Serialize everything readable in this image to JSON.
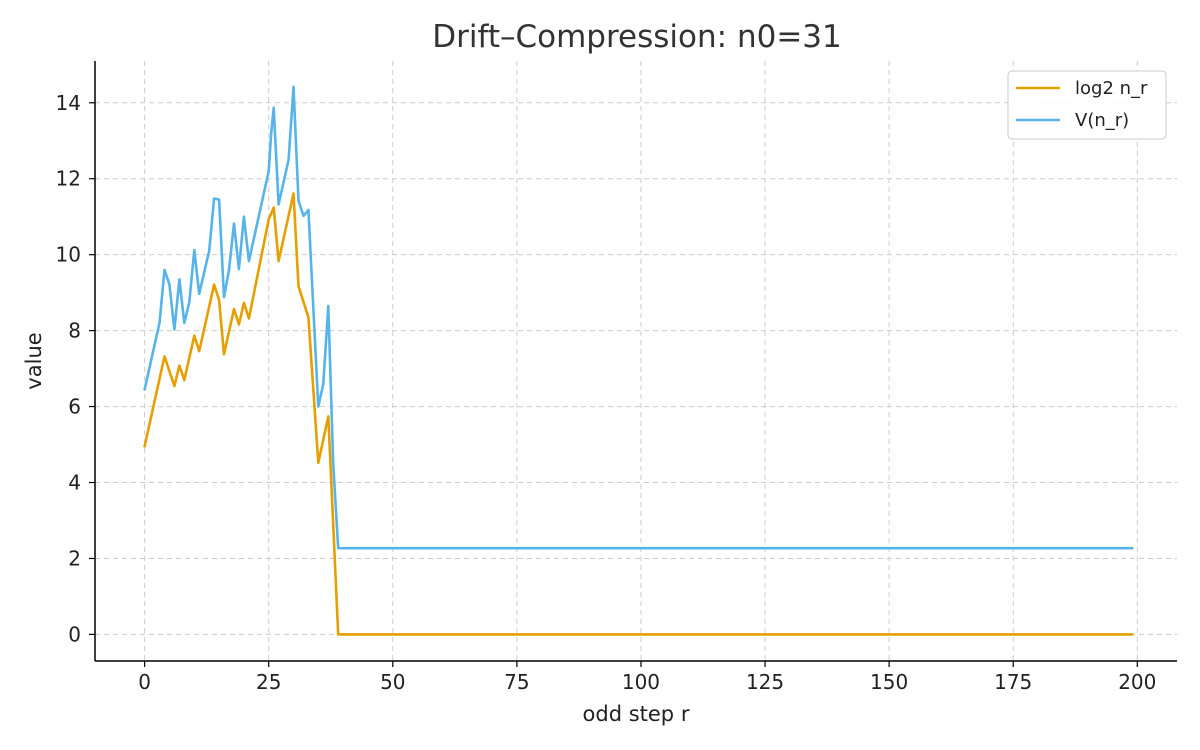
{
  "chart_data": {
    "type": "line",
    "title": "Drift–Compression: n0=31",
    "xlabel": "odd step r",
    "ylabel": "value",
    "xlim": [
      -10,
      208
    ],
    "ylim": [
      -0.7,
      15.1
    ],
    "x_ticks": [
      0,
      25,
      50,
      75,
      100,
      125,
      150,
      175,
      200
    ],
    "y_ticks": [
      0,
      2,
      4,
      6,
      8,
      10,
      12,
      14
    ],
    "grid": true,
    "legend_position": "top-right",
    "series": [
      {
        "name": "log2 n_r",
        "color": "#E69F00",
        "points": [
          [
            0,
            4.95
          ],
          [
            4,
            7.32
          ],
          [
            6,
            6.54
          ],
          [
            7,
            7.08
          ],
          [
            8,
            6.7
          ],
          [
            10,
            7.87
          ],
          [
            11,
            7.46
          ],
          [
            14,
            9.21
          ],
          [
            15,
            8.8
          ],
          [
            16,
            7.38
          ],
          [
            18,
            8.57
          ],
          [
            19,
            8.16
          ],
          [
            20,
            8.73
          ],
          [
            21,
            8.32
          ],
          [
            25,
            10.93
          ],
          [
            26,
            11.24
          ],
          [
            27,
            9.83
          ],
          [
            30,
            11.61
          ],
          [
            31,
            9.17
          ],
          [
            33,
            8.35
          ],
          [
            35,
            4.52
          ],
          [
            37,
            5.74
          ],
          [
            39,
            0
          ],
          [
            199,
            0
          ]
        ]
      },
      {
        "name": "V(n_r)",
        "color": "#56B4E9",
        "points": [
          [
            0,
            6.45
          ],
          [
            3,
            8.2
          ],
          [
            4,
            9.6
          ],
          [
            5,
            9.22
          ],
          [
            6,
            8.03
          ],
          [
            7,
            9.35
          ],
          [
            8,
            8.2
          ],
          [
            9,
            8.75
          ],
          [
            10,
            10.12
          ],
          [
            11,
            8.97
          ],
          [
            13,
            10.1
          ],
          [
            14,
            11.48
          ],
          [
            15,
            11.45
          ],
          [
            16,
            8.88
          ],
          [
            17,
            9.6
          ],
          [
            18,
            10.82
          ],
          [
            19,
            9.62
          ],
          [
            20,
            11.0
          ],
          [
            21,
            9.83
          ],
          [
            25,
            12.2
          ],
          [
            25.5,
            13.2
          ],
          [
            26,
            13.87
          ],
          [
            27,
            11.32
          ],
          [
            29,
            12.5
          ],
          [
            30,
            14.42
          ],
          [
            31,
            11.42
          ],
          [
            32,
            11.02
          ],
          [
            33,
            11.18
          ],
          [
            35,
            6.0
          ],
          [
            36,
            6.6
          ],
          [
            37,
            8.65
          ],
          [
            38,
            4.5
          ],
          [
            39,
            2.27
          ],
          [
            199,
            2.27
          ]
        ]
      }
    ]
  }
}
